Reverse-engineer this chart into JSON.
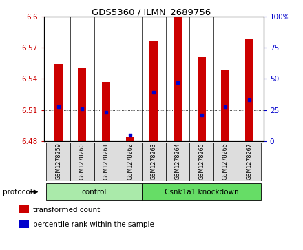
{
  "title": "GDS5360 / ILMN_2689756",
  "samples": [
    "GSM1278259",
    "GSM1278260",
    "GSM1278261",
    "GSM1278262",
    "GSM1278263",
    "GSM1278264",
    "GSM1278265",
    "GSM1278266",
    "GSM1278267"
  ],
  "bar_tops": [
    6.554,
    6.55,
    6.537,
    6.484,
    6.576,
    6.6,
    6.561,
    6.549,
    6.578
  ],
  "bar_bottoms_val": 6.48,
  "percentile_values": [
    6.513,
    6.511,
    6.508,
    6.486,
    6.527,
    6.536,
    6.505,
    6.513,
    6.52
  ],
  "ylim_left": [
    6.48,
    6.6
  ],
  "ylim_right": [
    0,
    100
  ],
  "yticks_left": [
    6.48,
    6.51,
    6.54,
    6.57,
    6.6
  ],
  "yticks_right": [
    0,
    25,
    50,
    75,
    100
  ],
  "ytick_labels_left": [
    "6.48",
    "6.51",
    "6.54",
    "6.57",
    "6.6"
  ],
  "ytick_labels_right": [
    "0",
    "25",
    "50",
    "75",
    "100%"
  ],
  "bar_color": "#cc0000",
  "percentile_color": "#0000cc",
  "groups": [
    {
      "label": "control",
      "indices": [
        0,
        1,
        2,
        3
      ],
      "color": "#aaeaaa"
    },
    {
      "label": "Csnk1a1 knockdown",
      "indices": [
        4,
        5,
        6,
        7,
        8
      ],
      "color": "#66dd66"
    }
  ],
  "protocol_label": "protocol",
  "legend_items": [
    {
      "label": "transformed count",
      "color": "#cc0000"
    },
    {
      "label": "percentile rank within the sample",
      "color": "#0000cc"
    }
  ],
  "bg_color": "#ffffff",
  "sample_box_color": "#dddddd",
  "bar_width": 0.35
}
